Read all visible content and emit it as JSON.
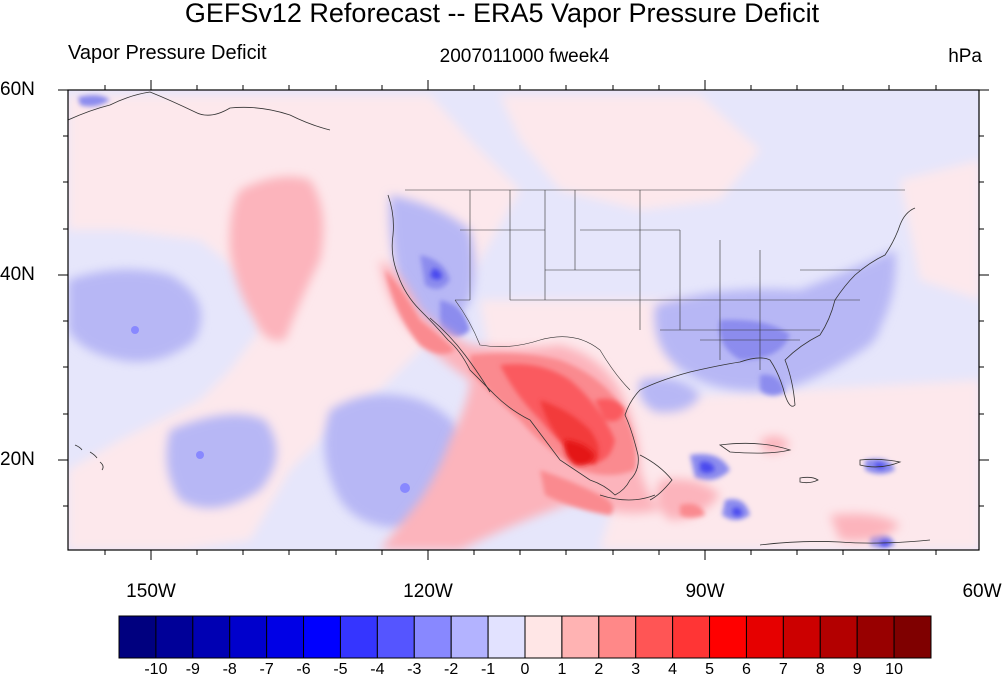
{
  "title": "GEFSv12 Reforecast -- ERA5 Vapor Pressure Deficit",
  "left_subtitle": "Vapor Pressure Deficit",
  "center_subtitle": "2007011000 fweek4",
  "right_subtitle": "hPa",
  "lat_labels": [
    "60N",
    "40N",
    "20N"
  ],
  "lon_labels": [
    "150W",
    "120W",
    "90W",
    "60W"
  ],
  "colorbar": {
    "labels": [
      "-10",
      "-9",
      "-8",
      "-7",
      "-6",
      "-5",
      "-4",
      "-3",
      "-2",
      "-1",
      "0",
      "1",
      "2",
      "3",
      "4",
      "5",
      "6",
      "7",
      "8",
      "9",
      "10"
    ],
    "colors": [
      "#00007f",
      "#000098",
      "#0000b3",
      "#0000cc",
      "#0000e6",
      "#0000ff",
      "#3535ff",
      "#5555ff",
      "#8888ff",
      "#b3b3ff",
      "#e2e2ff",
      "#ffe6e6",
      "#ffb3b3",
      "#ff8888",
      "#ff5555",
      "#ff3535",
      "#ff0000",
      "#e60000",
      "#cc0000",
      "#b30000",
      "#980000",
      "#7f0000"
    ]
  },
  "map": {
    "ocean_color": "#e8e8fc",
    "land_color": "#e6e6f6",
    "region": "lon 160W-60W, lat 10N-60N"
  }
}
